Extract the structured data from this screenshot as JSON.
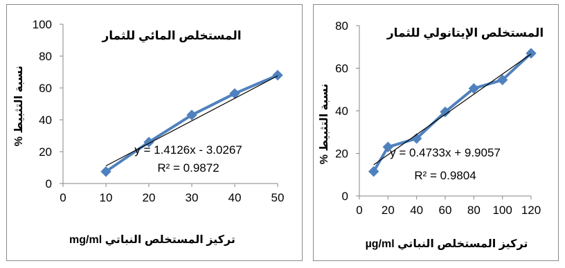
{
  "chart_data": [
    {
      "type": "line",
      "title": "المستخلص المائي للثمار",
      "xlabel": "تركيز المستخلص النباتي mg/ml",
      "ylabel": "نسبة التثبيط %",
      "xlim": [
        0,
        50
      ],
      "ylim": [
        0,
        100
      ],
      "xticks": [
        "0",
        "10",
        "20",
        "30",
        "40",
        "50"
      ],
      "yticks": [
        "0",
        "20",
        "40",
        "60",
        "80",
        "100"
      ],
      "series": [
        {
          "x": [
            10,
            20,
            30,
            40,
            50
          ],
          "values": [
            7.5,
            26,
            43,
            56.5,
            68
          ],
          "color": "#4F81BD"
        }
      ],
      "trendline": {
        "slope": 1.4126,
        "intercept": -3.0267,
        "x_range": [
          10,
          50
        ],
        "equation": "y = 1.4126x - 3.0267",
        "r2": "R² = 0.9872",
        "color": "#000000"
      },
      "grid": false,
      "legend": "none"
    },
    {
      "type": "line",
      "title": "المستخلص الإيتانولي للثمار",
      "xlabel": "تركيز المستخلص النباتي µg/ml",
      "ylabel": "نسبة التثبيط %",
      "xlim": [
        0,
        120
      ],
      "ylim": [
        0,
        80
      ],
      "xticks": [
        "0",
        "20",
        "40",
        "60",
        "80",
        "100",
        "120"
      ],
      "yticks": [
        "0",
        "20",
        "40",
        "60",
        "80"
      ],
      "series": [
        {
          "x": [
            10,
            20,
            40,
            60,
            80,
            100,
            120
          ],
          "values": [
            11.5,
            23,
            27,
            39.5,
            50.5,
            54.5,
            67
          ],
          "color": "#4F81BD"
        }
      ],
      "trendline": {
        "slope": 0.4733,
        "intercept": 9.9057,
        "x_range": [
          10,
          120
        ],
        "equation": "y = 0.4733x + 9.9057",
        "r2": "R² = 0.9804",
        "color": "#000000"
      },
      "grid": false,
      "legend": "none"
    }
  ]
}
